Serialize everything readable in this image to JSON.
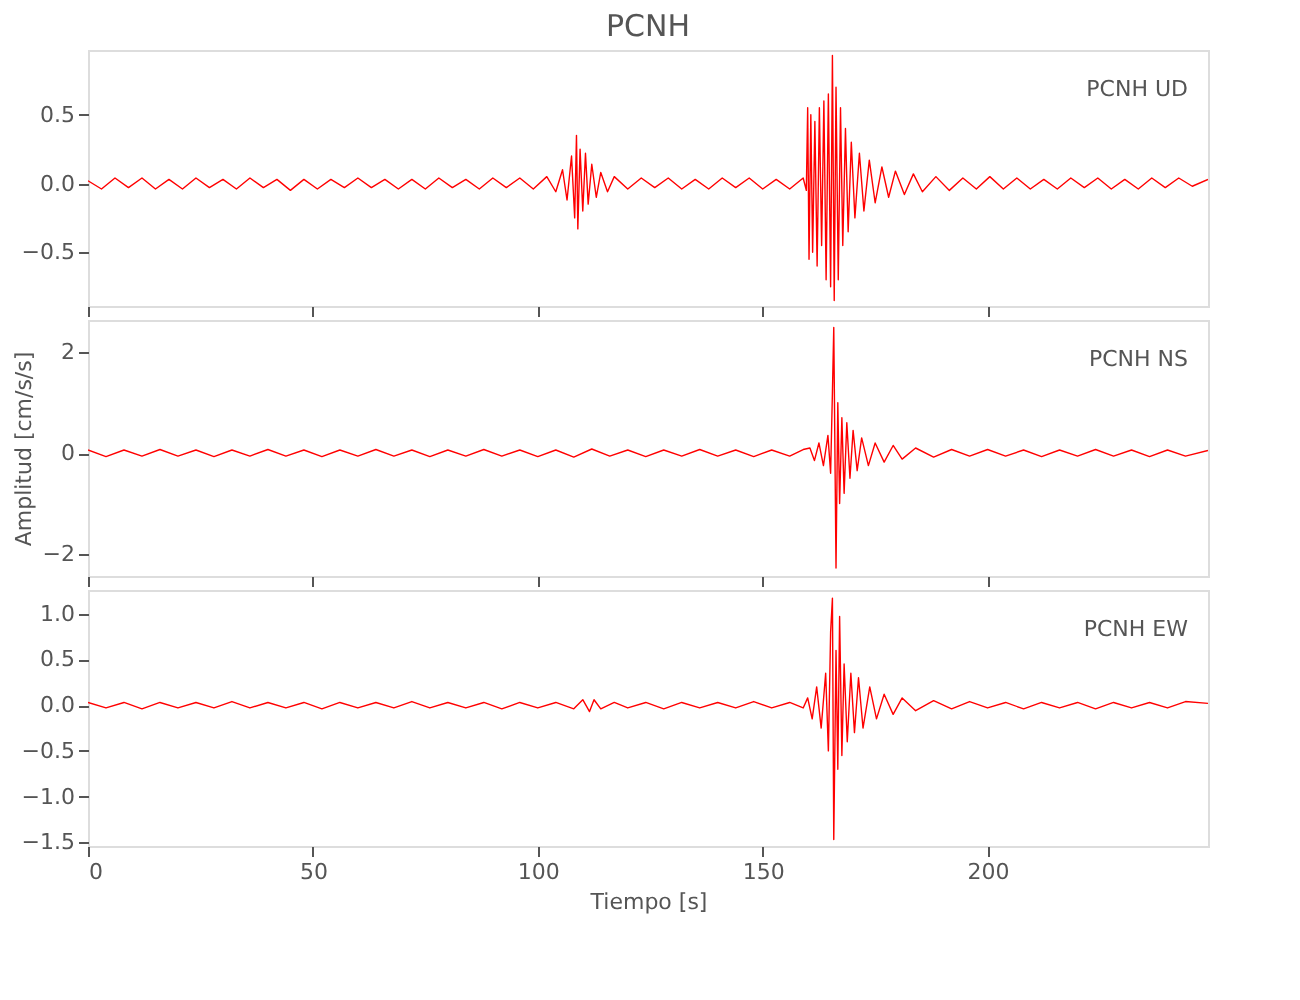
{
  "chart_data": [
    {
      "type": "line",
      "title": "PCNH",
      "annotations": [
        "PCNH   UD"
      ],
      "tick_labels": "y",
      "grid": false,
      "xlim": [
        0,
        249
      ],
      "xticks": [
        0,
        50,
        100,
        150,
        200
      ],
      "ylim": [
        -0.89,
        0.97
      ],
      "yticks": [
        -0.5,
        {
          "value": 0,
          "label": "0.0"
        },
        0.5
      ],
      "x": [
        0,
        3,
        6,
        9,
        12,
        15,
        18,
        21,
        24,
        27,
        30,
        33,
        36,
        39,
        42,
        45,
        48,
        51,
        54,
        57,
        60,
        63,
        66,
        69,
        72,
        75,
        78,
        81,
        84,
        87,
        90,
        93,
        96,
        99,
        102,
        104,
        105.5,
        106.5,
        107.5,
        108.2,
        108.6,
        108.9,
        109.4,
        110,
        110.6,
        111.2,
        112,
        113,
        114,
        115.5,
        117,
        120,
        123,
        126,
        129,
        132,
        135,
        138,
        141,
        144,
        147,
        150,
        153,
        156,
        159,
        159.7,
        160,
        160.3,
        160.7,
        161.1,
        161.6,
        162.1,
        162.6,
        163.1,
        163.6,
        164.1,
        164.6,
        165.1,
        165.5,
        165.9,
        166.3,
        166.8,
        167.3,
        167.8,
        168.4,
        169,
        169.7,
        170.5,
        171.5,
        172.5,
        173.7,
        175,
        176.5,
        178,
        179.5,
        181.5,
        183.5,
        185.5,
        188.5,
        191.5,
        194.5,
        197.5,
        200.5,
        203.5,
        206.5,
        209.5,
        212.5,
        215.5,
        218.5,
        221.5,
        224.5,
        227.5,
        230.5,
        233.5,
        236.5,
        239.5,
        242.5,
        245.5,
        249
      ],
      "series": [
        {
          "color": "#ff0000",
          "values": [
            0.02,
            -0.04,
            0.04,
            -0.03,
            0.04,
            -0.04,
            0.03,
            -0.04,
            0.04,
            -0.03,
            0.03,
            -0.04,
            0.04,
            -0.03,
            0.03,
            -0.05,
            0.03,
            -0.04,
            0.03,
            -0.03,
            0.04,
            -0.03,
            0.03,
            -0.04,
            0.03,
            -0.04,
            0.04,
            -0.03,
            0.03,
            -0.04,
            0.04,
            -0.03,
            0.04,
            -0.04,
            0.05,
            -0.06,
            0.1,
            -0.12,
            0.2,
            -0.25,
            0.35,
            -0.33,
            0.25,
            -0.2,
            0.22,
            -0.15,
            0.14,
            -0.1,
            0.08,
            -0.06,
            0.05,
            -0.04,
            0.04,
            -0.03,
            0.04,
            -0.04,
            0.03,
            -0.04,
            0.04,
            -0.03,
            0.04,
            -0.04,
            0.03,
            -0.04,
            0.04,
            -0.05,
            0.55,
            -0.55,
            0.5,
            -0.5,
            0.45,
            -0.6,
            0.55,
            -0.45,
            0.6,
            -0.7,
            0.65,
            -0.75,
            0.93,
            -0.85,
            0.7,
            -0.7,
            0.55,
            -0.45,
            0.4,
            -0.35,
            0.3,
            -0.25,
            0.22,
            -0.2,
            0.17,
            -0.14,
            0.12,
            -0.1,
            0.09,
            -0.08,
            0.07,
            -0.06,
            0.05,
            -0.05,
            0.04,
            -0.04,
            0.05,
            -0.04,
            0.04,
            -0.04,
            0.03,
            -0.04,
            0.04,
            -0.03,
            0.04,
            -0.04,
            0.03,
            -0.04,
            0.04,
            -0.03,
            0.04,
            -0.02,
            0.03
          ]
        }
      ]
    },
    {
      "type": "line",
      "annotations": [
        "PCNH   NS"
      ],
      "ylabel": "Amplitud [cm/s/s]",
      "tick_labels": "y",
      "grid": false,
      "xlim": [
        0,
        249
      ],
      "xticks": [
        0,
        50,
        100,
        150,
        200
      ],
      "ylim": [
        -2.44,
        2.64
      ],
      "yticks": [
        -2,
        0,
        2
      ],
      "x": [
        0,
        4,
        8,
        12,
        16,
        20,
        24,
        28,
        32,
        36,
        40,
        44,
        48,
        52,
        56,
        60,
        64,
        68,
        72,
        76,
        80,
        84,
        88,
        92,
        96,
        100,
        104,
        108,
        112,
        116,
        120,
        124,
        128,
        132,
        136,
        140,
        144,
        148,
        152,
        156,
        159,
        160.5,
        161.5,
        162.5,
        163.5,
        164.5,
        165.1,
        165.5,
        165.8,
        166.3,
        166.7,
        167.1,
        167.6,
        168.1,
        168.7,
        169.4,
        170.1,
        171,
        172,
        173.5,
        175,
        177,
        179,
        181,
        184,
        188,
        192,
        196,
        200,
        204,
        208,
        212,
        216,
        220,
        224,
        228,
        232,
        236,
        240,
        244,
        249
      ],
      "series": [
        {
          "color": "#ff0000",
          "values": [
            0.06,
            -0.07,
            0.06,
            -0.06,
            0.07,
            -0.06,
            0.06,
            -0.07,
            0.06,
            -0.06,
            0.07,
            -0.06,
            0.06,
            -0.07,
            0.06,
            -0.06,
            0.07,
            -0.06,
            0.06,
            -0.07,
            0.06,
            -0.06,
            0.07,
            -0.06,
            0.06,
            -0.07,
            0.06,
            -0.08,
            0.08,
            -0.06,
            0.06,
            -0.07,
            0.06,
            -0.06,
            0.07,
            -0.06,
            0.06,
            -0.07,
            0.06,
            -0.06,
            0.07,
            0.1,
            -0.15,
            0.2,
            -0.25,
            0.35,
            -0.4,
            1.2,
            2.49,
            -2.28,
            1.0,
            -1.0,
            0.7,
            -0.8,
            0.6,
            -0.5,
            0.45,
            -0.35,
            0.3,
            -0.25,
            0.2,
            -0.18,
            0.15,
            -0.12,
            0.1,
            -0.08,
            0.07,
            -0.06,
            0.07,
            -0.06,
            0.06,
            -0.07,
            0.06,
            -0.06,
            0.07,
            -0.06,
            0.06,
            -0.07,
            0.06,
            -0.06,
            0.05
          ]
        }
      ]
    },
    {
      "type": "line",
      "annotations": [
        "PCNH   EW"
      ],
      "xlabel": "Tiempo [s]",
      "grid": false,
      "xlim": [
        0,
        249
      ],
      "xticks": [
        0,
        50,
        100,
        150,
        200
      ],
      "ylim": [
        -1.54,
        1.26
      ],
      "yticks": [
        -1.5,
        {
          "value": -1,
          "label": "−1.0"
        },
        -0.5,
        {
          "value": 0,
          "label": "0.0"
        },
        0.5,
        {
          "value": 1,
          "label": "1.0"
        }
      ],
      "x": [
        0,
        4,
        8,
        12,
        16,
        20,
        24,
        28,
        32,
        36,
        40,
        44,
        48,
        52,
        56,
        60,
        64,
        68,
        72,
        76,
        80,
        84,
        88,
        92,
        96,
        100,
        104,
        108,
        110,
        111.5,
        112.5,
        114,
        117,
        120,
        124,
        128,
        132,
        136,
        140,
        144,
        148,
        152,
        156,
        159,
        160,
        161,
        162,
        163,
        164,
        164.6,
        165.1,
        165.5,
        165.8,
        166.3,
        166.7,
        167.1,
        167.6,
        168.1,
        168.8,
        169.6,
        170.4,
        171.3,
        172.3,
        173.8,
        175.3,
        177,
        179,
        181,
        184,
        188,
        192,
        196,
        200,
        204,
        208,
        212,
        216,
        220,
        224,
        228,
        232,
        236,
        240,
        244,
        249
      ],
      "series": [
        {
          "color": "#ff0000",
          "values": [
            0.03,
            -0.03,
            0.03,
            -0.04,
            0.03,
            -0.03,
            0.03,
            -0.03,
            0.04,
            -0.03,
            0.03,
            -0.03,
            0.03,
            -0.04,
            0.03,
            -0.03,
            0.03,
            -0.03,
            0.04,
            -0.03,
            0.03,
            -0.03,
            0.03,
            -0.04,
            0.03,
            -0.03,
            0.03,
            -0.04,
            0.06,
            -0.07,
            0.06,
            -0.04,
            0.03,
            -0.03,
            0.03,
            -0.04,
            0.03,
            -0.03,
            0.03,
            -0.03,
            0.04,
            -0.03,
            0.03,
            -0.03,
            0.08,
            -0.15,
            0.2,
            -0.25,
            0.35,
            -0.5,
            0.8,
            1.17,
            -1.47,
            0.6,
            -0.7,
            0.97,
            -0.55,
            0.45,
            -0.4,
            0.35,
            -0.3,
            0.3,
            -0.25,
            0.2,
            -0.15,
            0.12,
            -0.1,
            0.08,
            -0.06,
            0.05,
            -0.04,
            0.04,
            -0.03,
            0.03,
            -0.04,
            0.03,
            -0.03,
            0.03,
            -0.04,
            0.03,
            -0.03,
            0.03,
            -0.03,
            0.04,
            0.02
          ]
        }
      ]
    }
  ]
}
